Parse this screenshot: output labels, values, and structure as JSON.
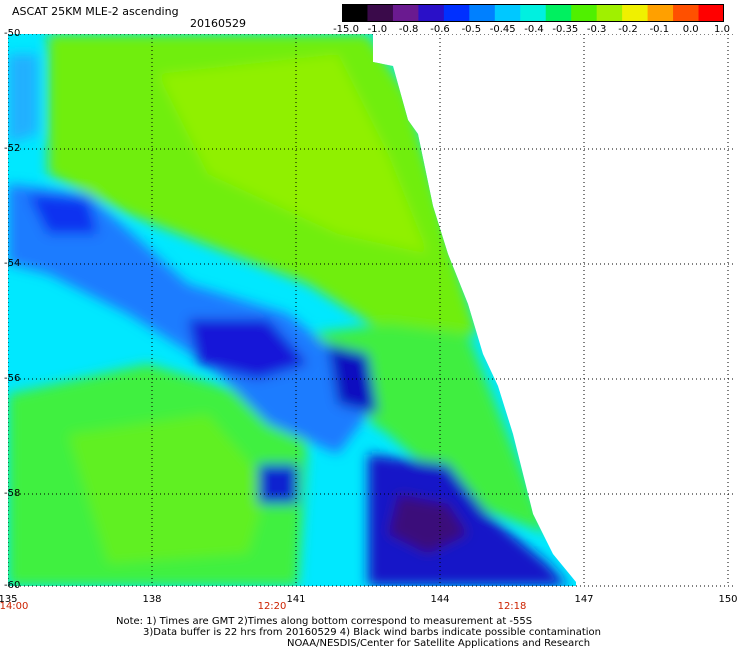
{
  "title": "ASCAT 25KM MLE-2 ascending",
  "date": "20160529",
  "colorbar": {
    "labels": [
      "-15.0",
      "-1.0",
      "-0.8",
      "-0.6",
      "-0.5",
      "-0.45",
      "-0.4",
      "-0.35",
      "-0.3",
      "-0.2",
      "-0.1",
      "0.0",
      "1.0"
    ],
    "colors": [
      "#000000",
      "#3a0a4a",
      "#6a1a90",
      "#2a10c8",
      "#0030ff",
      "#0080ff",
      "#00c8ff",
      "#00f0e0",
      "#00f060",
      "#50f000",
      "#a0f000",
      "#f0f000",
      "#ffa000",
      "#ff5000",
      "#ff0000"
    ]
  },
  "axes": {
    "y_labels": [
      "-50",
      "-52",
      "-54",
      "-56",
      "-58",
      "-60"
    ],
    "x_labels": [
      "135",
      "138",
      "141",
      "144",
      "147",
      "150"
    ],
    "time_labels": [
      "14:00",
      "12:20",
      "12:18"
    ]
  },
  "notes": [
    "Note: 1) Times are GMT 2)Times along bottom correspond to measurement at -55S",
    "3)Data buffer is 22 hrs from 20160529 4) Black wind barbs indicate possible contamination",
    "NOAA/NESDIS/Center for Satellite Applications and Research"
  ]
}
